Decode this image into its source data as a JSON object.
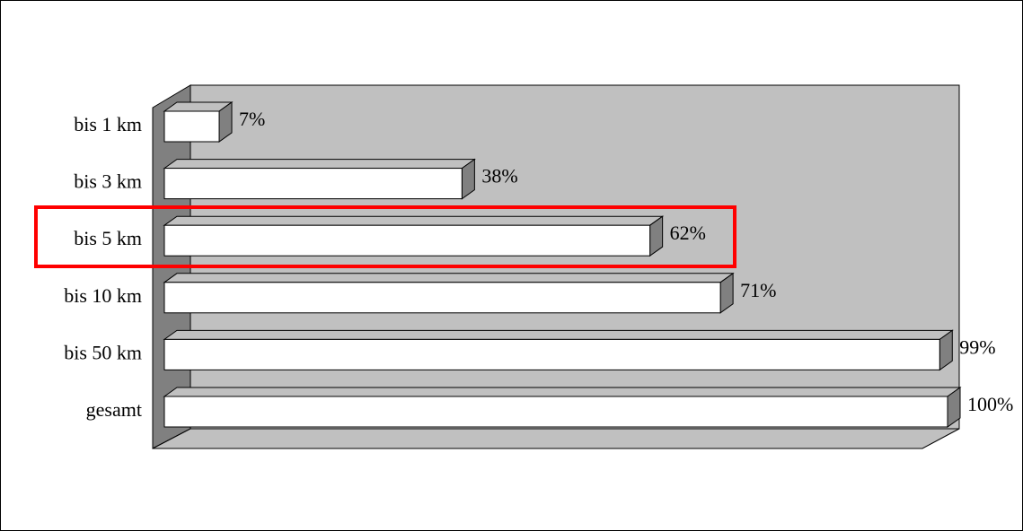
{
  "chart_data": {
    "type": "bar3d",
    "categories": [
      "bis 1 km",
      "bis 3 km",
      "bis 5 km",
      "bis 10 km",
      "bis 50 km",
      "gesamt"
    ],
    "values": [
      7,
      38,
      62,
      71,
      99,
      100
    ],
    "value_labels": [
      "7%",
      "38%",
      "62%",
      "71%",
      "99%",
      "100%"
    ],
    "xlim": [
      0,
      100
    ],
    "color": "#ffffff"
  }
}
